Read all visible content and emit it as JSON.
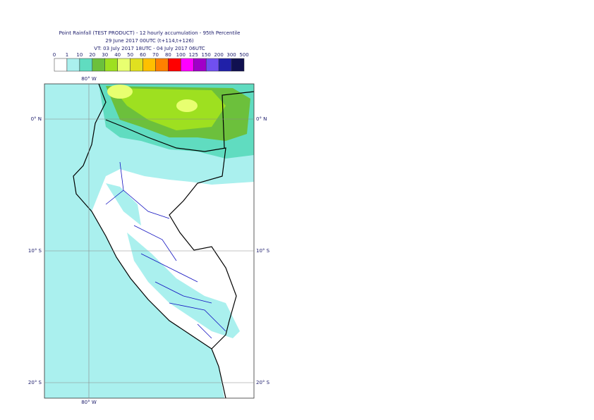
{
  "header": {
    "lines": [
      "Point Rainfall (TEST PRODUCT) - 12 hourly accumulation - 95th Percentile",
      "29 June 2017 00UTC (t+114,t+126)",
      "VT: 03 July 2017 18UTC - 04 July 2017 06UTC"
    ]
  },
  "legend": {
    "ticks": [
      0,
      1,
      10,
      20,
      30,
      40,
      50,
      60,
      70,
      80,
      100,
      125,
      150,
      200,
      300,
      500
    ],
    "colors": [
      "#ffffff",
      "#aaf0ee",
      "#60dcc0",
      "#6cc03c",
      "#9ee020",
      "#e8ff70",
      "#e0e020",
      "#ffc000",
      "#ff8000",
      "#ff0000",
      "#ff00ff",
      "#a000c8",
      "#7050f0",
      "#2020a8",
      "#101050"
    ]
  },
  "map": {
    "lon_label": "80° W",
    "lat_labels": [
      "0° N",
      "10° S",
      "20° S"
    ]
  }
}
